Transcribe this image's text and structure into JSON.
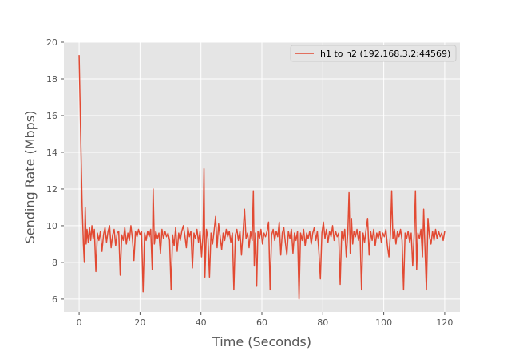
{
  "chart_data": {
    "type": "line",
    "title": "",
    "xlabel": "Time (Seconds)",
    "ylabel": "Sending Rate (Mbps)",
    "xlim": [
      -5,
      125
    ],
    "ylim": [
      5.3,
      20
    ],
    "xticks": [
      0,
      20,
      40,
      60,
      80,
      100,
      120
    ],
    "yticks": [
      6,
      8,
      10,
      12,
      14,
      16,
      18,
      20
    ],
    "grid": true,
    "legend_position": "top-right",
    "series": [
      {
        "name": "h1 to h2 (192.168.3.2:44569)",
        "color": "#e24a33",
        "points": [
          [
            0,
            19.3
          ],
          [
            0.5,
            15.0
          ],
          [
            1.0,
            11.0
          ],
          [
            1.4,
            9.0
          ],
          [
            1.7,
            8.0
          ],
          [
            2.0,
            11.0
          ],
          [
            2.3,
            9.0
          ],
          [
            2.6,
            9.8
          ],
          [
            3.0,
            9.1
          ],
          [
            3.4,
            9.9
          ],
          [
            3.8,
            9.2
          ],
          [
            4.2,
            10.0
          ],
          [
            4.6,
            9.3
          ],
          [
            5.0,
            9.8
          ],
          [
            5.5,
            7.5
          ],
          [
            6.0,
            9.6
          ],
          [
            6.5,
            9.2
          ],
          [
            7.0,
            9.7
          ],
          [
            7.5,
            8.6
          ],
          [
            8.0,
            9.5
          ],
          [
            8.5,
            9.9
          ],
          [
            9.0,
            9.1
          ],
          [
            9.5,
            9.7
          ],
          [
            10.0,
            10.0
          ],
          [
            10.5,
            8.8
          ],
          [
            11.0,
            9.5
          ],
          [
            11.5,
            9.8
          ],
          [
            12.0,
            8.9
          ],
          [
            12.5,
            9.6
          ],
          [
            13.0,
            9.7
          ],
          [
            13.5,
            7.3
          ],
          [
            14.0,
            9.5
          ],
          [
            14.5,
            9.2
          ],
          [
            15.0,
            9.9
          ],
          [
            15.5,
            9.0
          ],
          [
            16.0,
            9.6
          ],
          [
            16.5,
            9.2
          ],
          [
            17.0,
            10.0
          ],
          [
            17.5,
            9.3
          ],
          [
            18.0,
            8.1
          ],
          [
            18.5,
            9.7
          ],
          [
            19.0,
            9.4
          ],
          [
            19.5,
            9.8
          ],
          [
            20.0,
            9.5
          ],
          [
            20.5,
            9.7
          ],
          [
            21.0,
            6.4
          ],
          [
            21.5,
            9.6
          ],
          [
            22.0,
            9.2
          ],
          [
            22.5,
            9.7
          ],
          [
            23.0,
            9.4
          ],
          [
            23.5,
            9.8
          ],
          [
            24.0,
            7.6
          ],
          [
            24.3,
            12.0
          ],
          [
            24.7,
            9.0
          ],
          [
            25.2,
            9.7
          ],
          [
            25.7,
            9.3
          ],
          [
            26.2,
            9.6
          ],
          [
            26.7,
            8.5
          ],
          [
            27.2,
            9.8
          ],
          [
            27.7,
            9.3
          ],
          [
            28.2,
            9.7
          ],
          [
            28.7,
            9.4
          ],
          [
            29.2,
            9.6
          ],
          [
            29.7,
            9.2
          ],
          [
            30.2,
            6.5
          ],
          [
            30.7,
            9.5
          ],
          [
            31.2,
            8.9
          ],
          [
            31.7,
            9.9
          ],
          [
            32.2,
            8.6
          ],
          [
            32.7,
            9.6
          ],
          [
            33.2,
            9.2
          ],
          [
            33.7,
            9.7
          ],
          [
            34.2,
            10.0
          ],
          [
            34.7,
            9.5
          ],
          [
            35.2,
            8.8
          ],
          [
            35.7,
            9.9
          ],
          [
            36.2,
            9.4
          ],
          [
            36.7,
            9.7
          ],
          [
            37.2,
            7.7
          ],
          [
            37.7,
            9.6
          ],
          [
            38.2,
            9.3
          ],
          [
            38.7,
            9.8
          ],
          [
            39.2,
            9.1
          ],
          [
            39.7,
            9.7
          ],
          [
            40.2,
            8.3
          ],
          [
            40.7,
            9.6
          ],
          [
            41.0,
            13.1
          ],
          [
            41.3,
            7.2
          ],
          [
            41.8,
            9.8
          ],
          [
            42.3,
            9.3
          ],
          [
            42.8,
            7.2
          ],
          [
            43.3,
            9.6
          ],
          [
            43.8,
            9.0
          ],
          [
            44.3,
            9.7
          ],
          [
            44.8,
            10.5
          ],
          [
            45.3,
            8.8
          ],
          [
            45.8,
            10.1
          ],
          [
            46.3,
            9.4
          ],
          [
            46.8,
            8.7
          ],
          [
            47.3,
            9.6
          ],
          [
            47.8,
            9.2
          ],
          [
            48.3,
            9.8
          ],
          [
            48.8,
            9.4
          ],
          [
            49.3,
            9.7
          ],
          [
            49.8,
            9.1
          ],
          [
            50.3,
            9.6
          ],
          [
            50.8,
            6.5
          ],
          [
            51.3,
            9.5
          ],
          [
            51.8,
            9.8
          ],
          [
            52.3,
            9.2
          ],
          [
            52.8,
            9.7
          ],
          [
            53.3,
            8.4
          ],
          [
            53.8,
            9.6
          ],
          [
            54.3,
            10.9
          ],
          [
            54.8,
            9.3
          ],
          [
            55.3,
            9.6
          ],
          [
            55.8,
            8.8
          ],
          [
            56.3,
            9.7
          ],
          [
            56.8,
            9.2
          ],
          [
            57.2,
            11.9
          ],
          [
            57.5,
            7.8
          ],
          [
            57.9,
            9.6
          ],
          [
            58.3,
            6.7
          ],
          [
            58.7,
            9.7
          ],
          [
            59.2,
            9.3
          ],
          [
            59.7,
            9.8
          ],
          [
            60.2,
            9.0
          ],
          [
            60.7,
            9.6
          ],
          [
            61.2,
            9.4
          ],
          [
            61.7,
            9.7
          ],
          [
            62.2,
            10.2
          ],
          [
            62.7,
            6.5
          ],
          [
            63.2,
            9.5
          ],
          [
            63.7,
            9.8
          ],
          [
            64.2,
            9.2
          ],
          [
            64.7,
            9.7
          ],
          [
            65.2,
            9.4
          ],
          [
            65.7,
            10.2
          ],
          [
            66.2,
            8.4
          ],
          [
            66.7,
            9.6
          ],
          [
            67.2,
            9.9
          ],
          [
            67.7,
            9.1
          ],
          [
            68.2,
            8.4
          ],
          [
            68.7,
            9.7
          ],
          [
            69.2,
            9.3
          ],
          [
            69.7,
            9.8
          ],
          [
            70.2,
            8.5
          ],
          [
            70.7,
            9.6
          ],
          [
            71.2,
            9.2
          ],
          [
            71.7,
            9.7
          ],
          [
            72.2,
            6.0
          ],
          [
            72.7,
            9.6
          ],
          [
            73.2,
            9.2
          ],
          [
            73.7,
            9.8
          ],
          [
            74.2,
            8.9
          ],
          [
            74.7,
            9.6
          ],
          [
            75.2,
            9.3
          ],
          [
            75.7,
            9.7
          ],
          [
            76.2,
            9.0
          ],
          [
            76.7,
            9.6
          ],
          [
            77.2,
            9.9
          ],
          [
            77.7,
            9.2
          ],
          [
            78.2,
            9.7
          ],
          [
            78.7,
            8.6
          ],
          [
            79.2,
            7.1
          ],
          [
            79.7,
            9.6
          ],
          [
            80.2,
            10.2
          ],
          [
            80.7,
            9.3
          ],
          [
            81.2,
            9.8
          ],
          [
            81.7,
            9.1
          ],
          [
            82.2,
            9.7
          ],
          [
            82.7,
            9.4
          ],
          [
            83.2,
            10.0
          ],
          [
            83.7,
            9.2
          ],
          [
            84.2,
            9.7
          ],
          [
            84.7,
            9.4
          ],
          [
            85.2,
            9.6
          ],
          [
            85.7,
            6.8
          ],
          [
            86.2,
            9.7
          ],
          [
            86.7,
            9.2
          ],
          [
            87.2,
            9.8
          ],
          [
            87.7,
            8.3
          ],
          [
            88.2,
            9.6
          ],
          [
            88.6,
            11.8
          ],
          [
            89.0,
            8.5
          ],
          [
            89.4,
            10.4
          ],
          [
            89.8,
            9.0
          ],
          [
            90.2,
            9.7
          ],
          [
            90.7,
            9.4
          ],
          [
            91.2,
            9.8
          ],
          [
            91.7,
            9.2
          ],
          [
            92.2,
            9.7
          ],
          [
            92.7,
            6.5
          ],
          [
            93.2,
            9.6
          ],
          [
            93.7,
            9.1
          ],
          [
            94.2,
            9.8
          ],
          [
            94.7,
            10.4
          ],
          [
            95.2,
            8.4
          ],
          [
            95.7,
            9.7
          ],
          [
            96.2,
            9.2
          ],
          [
            96.7,
            9.8
          ],
          [
            97.2,
            8.9
          ],
          [
            97.7,
            9.6
          ],
          [
            98.2,
            9.3
          ],
          [
            98.7,
            9.7
          ],
          [
            99.2,
            9.1
          ],
          [
            99.7,
            9.6
          ],
          [
            100.2,
            9.4
          ],
          [
            100.7,
            9.8
          ],
          [
            101.2,
            8.9
          ],
          [
            101.7,
            8.3
          ],
          [
            102.2,
            9.6
          ],
          [
            102.6,
            11.9
          ],
          [
            103.0,
            9.3
          ],
          [
            103.5,
            9.8
          ],
          [
            104.0,
            9.0
          ],
          [
            104.5,
            9.7
          ],
          [
            105.0,
            9.4
          ],
          [
            105.5,
            9.8
          ],
          [
            106.0,
            9.2
          ],
          [
            106.5,
            6.5
          ],
          [
            107.0,
            9.6
          ],
          [
            107.5,
            9.3
          ],
          [
            108.0,
            9.7
          ],
          [
            108.5,
            9.1
          ],
          [
            109.0,
            9.6
          ],
          [
            109.5,
            7.8
          ],
          [
            110.0,
            9.6
          ],
          [
            110.4,
            11.9
          ],
          [
            110.8,
            7.6
          ],
          [
            111.2,
            9.6
          ],
          [
            111.7,
            9.3
          ],
          [
            112.2,
            9.8
          ],
          [
            112.7,
            8.3
          ],
          [
            113.1,
            10.9
          ],
          [
            113.5,
            8.9
          ],
          [
            114.0,
            6.5
          ],
          [
            114.5,
            10.4
          ],
          [
            115.0,
            9.4
          ],
          [
            115.5,
            9.0
          ],
          [
            116.0,
            9.7
          ],
          [
            116.5,
            9.2
          ],
          [
            117.0,
            9.8
          ],
          [
            117.5,
            9.3
          ],
          [
            118.0,
            9.7
          ],
          [
            118.5,
            9.4
          ],
          [
            119.0,
            9.6
          ],
          [
            119.5,
            9.2
          ],
          [
            120.0,
            9.7
          ]
        ]
      }
    ]
  }
}
